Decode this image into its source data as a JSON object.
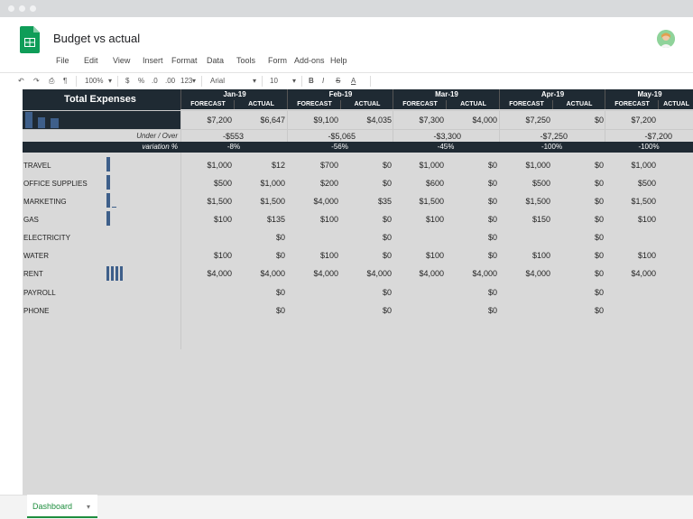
{
  "app": {
    "title": "Budget vs actual",
    "brand_color": "#0f9d58"
  },
  "menu": [
    "File",
    "Edit",
    "View",
    "Insert",
    "Format",
    "Data",
    "Tools",
    "Form",
    "Add-ons",
    "Help"
  ],
  "toolbar": {
    "zoom": "100%",
    "currency": "$",
    "percent": "%",
    "dec_less": ".0",
    "dec_more": ".00",
    "number_format": "123",
    "font": "Arial",
    "font_size": "10",
    "bold": "B",
    "italic": "I",
    "strike": "S",
    "text_color": "A"
  },
  "sheet": {
    "total_title": "Total Expenses",
    "under_over_label": "Under / Over",
    "variation_label": "variation %",
    "forecast_label": "FORECAST",
    "actual_label": "ACTUAL",
    "months": [
      {
        "name": "Jan-19",
        "total_forecast": "$7,200",
        "total_actual": "$6,647",
        "under_over": "-$553",
        "variation": "-8%"
      },
      {
        "name": "Feb-19",
        "total_forecast": "$9,100",
        "total_actual": "$4,035",
        "under_over": "-$5,065",
        "variation": "-56%"
      },
      {
        "name": "Mar-19",
        "total_forecast": "$7,300",
        "total_actual": "$4,000",
        "under_over": "-$3,300",
        "variation": "-45%"
      },
      {
        "name": "Apr-19",
        "total_forecast": "$7,250",
        "total_actual": "$0",
        "under_over": "-$7,250",
        "variation": "-100%"
      },
      {
        "name": "May-19",
        "total_forecast": "$7,200",
        "total_actual": "",
        "under_over": "-$7,200",
        "variation": "-100%"
      }
    ],
    "categories": [
      {
        "name": "TRAVEL",
        "values": [
          "$1,000",
          "$12",
          "$700",
          "$0",
          "$1,000",
          "$0",
          "$1,000",
          "$0",
          "$1,000"
        ]
      },
      {
        "name": "OFFICE SUPPLIES",
        "values": [
          "$500",
          "$1,000",
          "$200",
          "$0",
          "$600",
          "$0",
          "$500",
          "$0",
          "$500"
        ]
      },
      {
        "name": "MARKETING",
        "values": [
          "$1,500",
          "$1,500",
          "$4,000",
          "$35",
          "$1,500",
          "$0",
          "$1,500",
          "$0",
          "$1,500"
        ]
      },
      {
        "name": "GAS",
        "values": [
          "$100",
          "$135",
          "$100",
          "$0",
          "$100",
          "$0",
          "$150",
          "$0",
          "$100"
        ]
      },
      {
        "name": "ELECTRICITY",
        "values": [
          "",
          "$0",
          "",
          "$0",
          "",
          "$0",
          "",
          "$0",
          ""
        ]
      },
      {
        "name": "WATER",
        "values": [
          "$100",
          "$0",
          "$100",
          "$0",
          "$100",
          "$0",
          "$100",
          "$0",
          "$100"
        ]
      },
      {
        "name": "RENT",
        "values": [
          "$4,000",
          "$4,000",
          "$4,000",
          "$4,000",
          "$4,000",
          "$4,000",
          "$4,000",
          "$0",
          "$4,000"
        ]
      },
      {
        "name": "PAYROLL",
        "values": [
          "",
          "$0",
          "",
          "$0",
          "",
          "$0",
          "",
          "$0",
          ""
        ]
      },
      {
        "name": "PHONE",
        "values": [
          "",
          "$0",
          "",
          "$0",
          "",
          "$0",
          "",
          "$0",
          ""
        ]
      }
    ]
  },
  "tabs": {
    "active": "Dashboard"
  }
}
